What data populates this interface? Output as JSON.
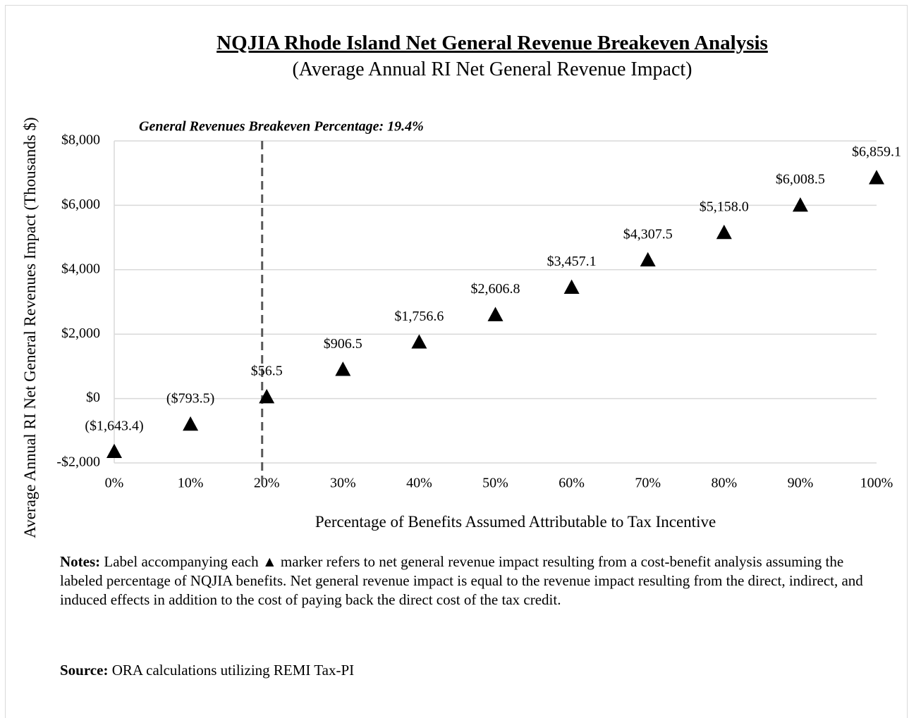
{
  "chart_data": {
    "type": "scatter",
    "title": "NQJIA Rhode Island Net General Revenue Breakeven Analysis",
    "subtitle": "(Average Annual RI Net General Revenue Impact)",
    "x": [
      0,
      10,
      20,
      30,
      40,
      50,
      60,
      70,
      80,
      90,
      100
    ],
    "values": [
      -1643.4,
      -793.5,
      56.5,
      906.5,
      1756.6,
      2606.8,
      3457.1,
      4307.5,
      5158.0,
      6008.5,
      6859.1
    ],
    "value_labels": [
      "($1,643.4)",
      "($793.5)",
      "$56.5",
      "$906.5",
      "$1,756.6",
      "$2,606.8",
      "$3,457.1",
      "$4,307.5",
      "$5,158.0",
      "$6,008.5",
      "$6,859.1"
    ],
    "color": "#000000",
    "marker": "triangle",
    "xlim": [
      0,
      100
    ],
    "xticks": [
      {
        "value": 0,
        "label": "0%"
      },
      {
        "value": 10,
        "label": "10%"
      },
      {
        "value": 20,
        "label": "20%"
      },
      {
        "value": 30,
        "label": "30%"
      },
      {
        "value": 40,
        "label": "40%"
      },
      {
        "value": 50,
        "label": "50%"
      },
      {
        "value": 60,
        "label": "60%"
      },
      {
        "value": 70,
        "label": "70%"
      },
      {
        "value": 80,
        "label": "80%"
      },
      {
        "value": 90,
        "label": "90%"
      },
      {
        "value": 100,
        "label": "100%"
      }
    ],
    "ylim": [
      -2000,
      8000
    ],
    "yticks": [
      {
        "value": -2000,
        "label": "-$2,000"
      },
      {
        "value": 0,
        "label": "$0"
      },
      {
        "value": 2000,
        "label": "$2,000"
      },
      {
        "value": 4000,
        "label": "$4,000"
      },
      {
        "value": 6000,
        "label": "$6,000"
      },
      {
        "value": 8000,
        "label": "$8,000"
      }
    ],
    "xlabel": "Percentage of Benefits Assumed Attributable to Tax Incentive",
    "ylabel": "Average Annual RI Net General Revenues Impact (Thousands $)",
    "grid": true,
    "breakeven": 19.4,
    "annotation": "General Revenues Breakeven Percentage: 19.4%"
  },
  "notes": {
    "label": "Notes:",
    "text": "Label accompanying each ▲ marker refers to net general revenue impact resulting from a cost-benefit analysis assuming the labeled percentage of NQJIA benefits. Net general revenue impact is equal to the revenue impact resulting from the direct, indirect, and induced effects in addition to the cost of paying back the direct cost of the tax credit."
  },
  "source": {
    "label": "Source:",
    "text": "ORA calculations utilizing REMI Tax-PI"
  }
}
